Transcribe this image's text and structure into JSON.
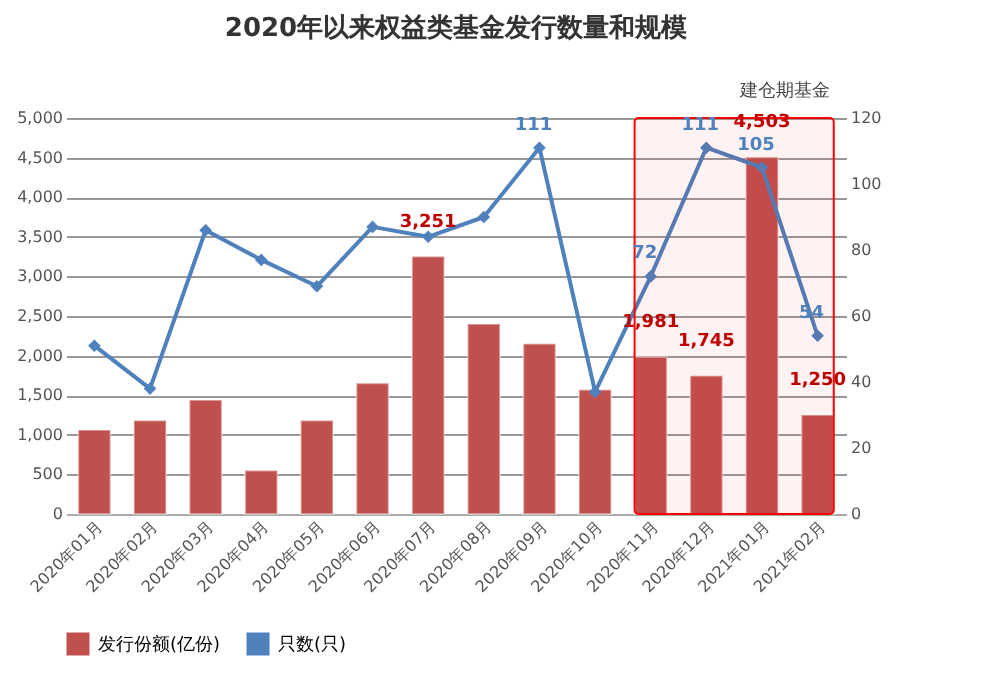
{
  "chart_data": {
    "type": "bar",
    "title": "2020年以来权益类基金发行数量和规模",
    "categories": [
      "2020年01月",
      "2020年02月",
      "2020年03月",
      "2020年04月",
      "2020年05月",
      "2020年06月",
      "2020年07月",
      "2020年08月",
      "2020年09月",
      "2020年10月",
      "2020年11月",
      "2020年12月",
      "2021年01月",
      "2021年02月"
    ],
    "series": [
      {
        "name": "发行份额(亿份)",
        "color": "#c0504d",
        "values": [
          1060,
          1180,
          1440,
          550,
          1180,
          1650,
          3251,
          2400,
          2150,
          1570,
          1981,
          1745,
          4503,
          1250
        ],
        "value_labels": [
          null,
          null,
          null,
          null,
          null,
          null,
          "3,251",
          null,
          null,
          null,
          "1,981",
          "1,745",
          "4,503",
          "1,250"
        ]
      },
      {
        "name": "只数(只)",
        "type": "line",
        "axis": "y2",
        "color": "#4f81bd",
        "marker": "diamond",
        "values": [
          51,
          38,
          86,
          77,
          69,
          87,
          84,
          90,
          111,
          37,
          72,
          111,
          105,
          54
        ],
        "value_labels": [
          null,
          null,
          null,
          null,
          null,
          null,
          null,
          null,
          "111",
          null,
          "72",
          "111",
          "105",
          "54"
        ]
      }
    ],
    "ylim": [
      0,
      5000
    ],
    "yticks": [
      0,
      500,
      {
        "value": 1000,
        "label": "1,000"
      },
      {
        "value": 1500,
        "label": "1,500"
      },
      {
        "value": 2000,
        "label": "2,000"
      },
      {
        "value": 2500,
        "label": "2,500"
      },
      {
        "value": 3000,
        "label": "3,000"
      },
      {
        "value": 3500,
        "label": "3,500"
      },
      {
        "value": 4000,
        "label": "4,000"
      },
      {
        "value": 4500,
        "label": "4,500"
      },
      {
        "value": 5000,
        "label": "5,000"
      }
    ],
    "y2lim": [
      0,
      120
    ],
    "y2ticks": [
      0,
      20,
      40,
      60,
      80,
      100,
      120
    ],
    "bands": [
      {
        "axis": "x",
        "from": "2020年11月",
        "to": "2021年02月",
        "label": "建仓期基金",
        "color": "#ff0000"
      }
    ],
    "grid": "y",
    "legend": "bottom"
  }
}
